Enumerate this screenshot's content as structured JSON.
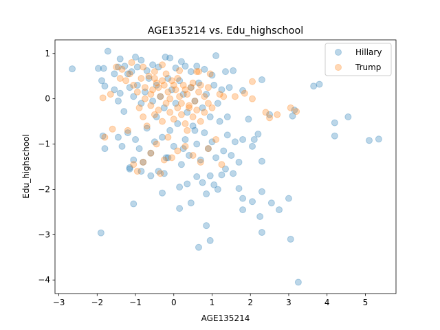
{
  "chart_data": {
    "type": "scatter",
    "title": "AGE135214 vs. Edu_highschool",
    "xlabel": "AGE135214",
    "ylabel": "Edu_highschool",
    "xlim": [
      -3.1,
      5.8
    ],
    "ylim": [
      -4.3,
      1.3
    ],
    "xticks": [
      -3,
      -2,
      -1,
      0,
      1,
      2,
      3,
      4,
      5
    ],
    "yticks": [
      -4,
      -3,
      -2,
      -1,
      0,
      1
    ],
    "grid": false,
    "legend_position": "top-right",
    "series": [
      {
        "name": "Hillary",
        "color": "#1f77b4",
        "points": [
          [
            -2.65,
            0.66
          ],
          [
            -1.97,
            0.67
          ],
          [
            -1.83,
            0.67
          ],
          [
            -1.72,
            1.05
          ],
          [
            -1.88,
            0.4
          ],
          [
            -1.8,
            0.28
          ],
          [
            -1.55,
            0.55
          ],
          [
            -1.45,
            0.7
          ],
          [
            -1.4,
            0.88
          ],
          [
            -1.28,
            0.72
          ],
          [
            -1.2,
            0.55
          ],
          [
            -1.1,
            0.6
          ],
          [
            -1.0,
            0.92
          ],
          [
            -0.95,
            0.7
          ],
          [
            -0.85,
            0.85
          ],
          [
            -0.7,
            0.62
          ],
          [
            -0.55,
            0.75
          ],
          [
            -0.4,
            0.7
          ],
          [
            -0.22,
            0.92
          ],
          [
            -0.1,
            0.9
          ],
          [
            0.05,
            0.68
          ],
          [
            0.2,
            0.82
          ],
          [
            0.3,
            0.72
          ],
          [
            0.45,
            0.6
          ],
          [
            0.6,
            0.72
          ],
          [
            0.8,
            0.65
          ],
          [
            1.0,
            0.52
          ],
          [
            1.1,
            0.95
          ],
          [
            1.35,
            0.6
          ],
          [
            1.55,
            0.62
          ],
          [
            -1.55,
            0.2
          ],
          [
            -1.45,
            -0.05
          ],
          [
            -1.4,
            0.12
          ],
          [
            -1.3,
            -0.28
          ],
          [
            -1.15,
            0.25
          ],
          [
            -1.05,
            0.05
          ],
          [
            -0.95,
            0.3
          ],
          [
            -0.85,
            -0.1
          ],
          [
            -0.75,
            0.15
          ],
          [
            -0.65,
            0.45
          ],
          [
            -0.55,
            -0.05
          ],
          [
            -0.45,
            0.3
          ],
          [
            -0.35,
            0.05
          ],
          [
            -0.25,
            -0.2
          ],
          [
            -0.15,
            0.45
          ],
          [
            -0.05,
            0.2
          ],
          [
            0.05,
            -0.1
          ],
          [
            0.15,
            0.4
          ],
          [
            0.25,
            0.1
          ],
          [
            0.35,
            -0.3
          ],
          [
            0.45,
            0.25
          ],
          [
            0.55,
            -0.05
          ],
          [
            0.65,
            0.35
          ],
          [
            0.75,
            -0.2
          ],
          [
            0.85,
            0.1
          ],
          [
            0.95,
            -0.4
          ],
          [
            1.05,
            0.3
          ],
          [
            1.15,
            -0.1
          ],
          [
            1.25,
            0.2
          ],
          [
            1.45,
            0.25
          ],
          [
            1.8,
            0.18
          ],
          [
            1.95,
            -0.45
          ],
          [
            2.3,
            0.42
          ],
          [
            2.5,
            -0.35
          ],
          [
            3.1,
            -0.38
          ],
          [
            3.15,
            -0.25
          ],
          [
            3.65,
            0.28
          ],
          [
            3.8,
            0.32
          ],
          [
            4.2,
            -0.53
          ],
          [
            4.55,
            -0.4
          ],
          [
            4.2,
            -0.82
          ],
          [
            5.1,
            -0.92
          ],
          [
            5.35,
            -0.89
          ],
          [
            -1.85,
            -0.82
          ],
          [
            -1.8,
            -1.1
          ],
          [
            -1.45,
            -0.85
          ],
          [
            -1.35,
            -1.05
          ],
          [
            -1.2,
            -0.75
          ],
          [
            -1.15,
            -1.52
          ],
          [
            -1.05,
            -1.35
          ],
          [
            -1.0,
            -0.9
          ],
          [
            -0.9,
            -1.1
          ],
          [
            -0.8,
            -1.4
          ],
          [
            -0.7,
            -0.65
          ],
          [
            -0.6,
            -1.2
          ],
          [
            -0.5,
            -0.95
          ],
          [
            -0.4,
            -1.6
          ],
          [
            -0.3,
            -0.85
          ],
          [
            -0.2,
            -1.3
          ],
          [
            -0.1,
            -0.7
          ],
          [
            0.0,
            -1.05
          ],
          [
            0.1,
            -0.55
          ],
          [
            0.2,
            -1.45
          ],
          [
            0.3,
            -0.9
          ],
          [
            0.4,
            -1.25
          ],
          [
            0.5,
            -0.6
          ],
          [
            0.6,
            -1.0
          ],
          [
            0.7,
            -1.35
          ],
          [
            0.8,
            -0.75
          ],
          [
            0.9,
            -1.1
          ],
          [
            1.0,
            -0.95
          ],
          [
            1.1,
            -1.3
          ],
          [
            1.2,
            -0.5
          ],
          [
            1.3,
            -1.15
          ],
          [
            1.4,
            -0.8
          ],
          [
            1.5,
            -1.25
          ],
          [
            1.6,
            -0.95
          ],
          [
            1.7,
            -1.4
          ],
          [
            1.8,
            -0.9
          ],
          [
            2.05,
            -1.05
          ],
          [
            2.1,
            -0.9
          ],
          [
            2.3,
            -1.38
          ],
          [
            2.2,
            -0.78
          ],
          [
            -1.9,
            -2.96
          ],
          [
            -1.15,
            -1.55
          ],
          [
            -1.05,
            -2.32
          ],
          [
            -0.85,
            -1.6
          ],
          [
            -0.6,
            -1.7
          ],
          [
            -0.3,
            -2.08
          ],
          [
            -0.25,
            -1.65
          ],
          [
            0.15,
            -1.95
          ],
          [
            0.35,
            -1.88
          ],
          [
            0.45,
            -2.3
          ],
          [
            0.6,
            -1.72
          ],
          [
            0.75,
            -1.85
          ],
          [
            0.85,
            -2.1
          ],
          [
            0.95,
            -1.7
          ],
          [
            1.05,
            -1.9
          ],
          [
            1.15,
            -2.0
          ],
          [
            1.25,
            -1.68
          ],
          [
            1.35,
            -1.55
          ],
          [
            1.55,
            -1.65
          ],
          [
            1.7,
            -1.98
          ],
          [
            1.8,
            -2.2
          ],
          [
            1.8,
            -2.45
          ],
          [
            2.05,
            -2.27
          ],
          [
            2.25,
            -2.6
          ],
          [
            2.3,
            -2.05
          ],
          [
            2.55,
            -2.3
          ],
          [
            2.75,
            -2.45
          ],
          [
            3.0,
            -2.2
          ],
          [
            2.3,
            -2.95
          ],
          [
            3.05,
            -3.1
          ],
          [
            0.65,
            -3.28
          ],
          [
            0.95,
            -3.13
          ],
          [
            0.85,
            -2.8
          ],
          [
            3.25,
            -4.05
          ],
          [
            0.15,
            -2.42
          ],
          [
            -0.15,
            -1.3
          ],
          [
            0.25,
            -1.1
          ],
          [
            -0.45,
            -0.4
          ],
          [
            0.55,
            -0.7
          ],
          [
            1.4,
            -0.4
          ]
        ]
      },
      {
        "name": "Trump",
        "color": "#ff7f0e",
        "points": [
          [
            -1.85,
            0.02
          ],
          [
            -1.65,
            0.1
          ],
          [
            -1.4,
            0.45
          ],
          [
            -1.35,
            0.65
          ],
          [
            -1.25,
            0.4
          ],
          [
            -1.15,
            0.55
          ],
          [
            -1.05,
            0.3
          ],
          [
            -0.95,
            0.15
          ],
          [
            -0.85,
            0.45
          ],
          [
            -0.75,
            0.25
          ],
          [
            -0.65,
            0.5
          ],
          [
            -0.55,
            0.2
          ],
          [
            -0.45,
            0.35
          ],
          [
            -0.35,
            0.05
          ],
          [
            -0.25,
            0.3
          ],
          [
            -0.15,
            0.15
          ],
          [
            -0.05,
            0.4
          ],
          [
            0.05,
            0.2
          ],
          [
            0.15,
            0.05
          ],
          [
            0.25,
            0.3
          ],
          [
            0.35,
            0.1
          ],
          [
            0.45,
            0.25
          ],
          [
            0.55,
            -0.05
          ],
          [
            0.65,
            0.15
          ],
          [
            -0.6,
            0.1
          ],
          [
            -0.5,
            0.45
          ],
          [
            -0.4,
            0.25
          ],
          [
            -0.3,
            0.4
          ],
          [
            -0.2,
            0.55
          ],
          [
            -0.1,
            0.0
          ],
          [
            0.0,
            0.3
          ],
          [
            0.1,
            0.45
          ],
          [
            0.2,
            -0.1
          ],
          [
            0.3,
            0.2
          ],
          [
            0.4,
            -0.2
          ],
          [
            0.5,
            0.35
          ],
          [
            0.6,
            0.6
          ],
          [
            0.7,
            0.3
          ],
          [
            0.8,
            0.05
          ],
          [
            0.9,
            0.25
          ],
          [
            -0.9,
            -0.2
          ],
          [
            -0.8,
            -0.4
          ],
          [
            -0.7,
            -0.6
          ],
          [
            -0.6,
            -0.15
          ],
          [
            -0.5,
            -0.35
          ],
          [
            -0.4,
            -0.25
          ],
          [
            -0.3,
            -0.5
          ],
          [
            -0.2,
            -0.1
          ],
          [
            -0.1,
            -0.3
          ],
          [
            0.0,
            -0.45
          ],
          [
            0.1,
            -0.2
          ],
          [
            0.2,
            -0.35
          ],
          [
            0.3,
            -0.55
          ],
          [
            0.4,
            -0.15
          ],
          [
            0.5,
            -0.4
          ],
          [
            0.6,
            -0.25
          ],
          [
            0.7,
            -0.5
          ],
          [
            0.8,
            -0.3
          ],
          [
            0.9,
            -0.1
          ],
          [
            1.0,
            -0.2
          ],
          [
            1.6,
            0.05
          ],
          [
            1.85,
            0.12
          ],
          [
            2.05,
            0.0
          ],
          [
            2.05,
            0.38
          ],
          [
            2.4,
            -0.3
          ],
          [
            2.5,
            -0.42
          ],
          [
            2.7,
            -0.35
          ],
          [
            3.05,
            -0.2
          ],
          [
            3.2,
            -0.28
          ],
          [
            1.3,
            0.05
          ],
          [
            -1.8,
            -0.85
          ],
          [
            -1.6,
            -0.67
          ],
          [
            -1.2,
            -0.7
          ],
          [
            -1.05,
            -1.45
          ],
          [
            -0.95,
            -1.6
          ],
          [
            -0.8,
            -1.4
          ],
          [
            -0.6,
            -1.2
          ],
          [
            -0.45,
            -1.0
          ],
          [
            -0.25,
            -1.35
          ],
          [
            -0.05,
            -1.3
          ],
          [
            0.1,
            -1.15
          ],
          [
            0.3,
            -1.05
          ],
          [
            0.5,
            -1.25
          ],
          [
            0.7,
            -1.4
          ],
          [
            0.9,
            -1.1
          ],
          [
            1.1,
            -0.9
          ],
          [
            1.25,
            -1.45
          ],
          [
            -0.35,
            -1.65
          ],
          [
            -0.15,
            -0.85
          ],
          [
            0.35,
            -0.7
          ],
          [
            -1.1,
            0.8
          ],
          [
            -0.8,
            0.7
          ],
          [
            -0.5,
            0.6
          ],
          [
            -0.3,
            0.75
          ],
          [
            0.15,
            0.62
          ],
          [
            0.65,
            0.6
          ],
          [
            0.95,
            0.55
          ],
          [
            -1.5,
            0.7
          ],
          [
            1.2,
            0.1
          ],
          [
            -0.75,
            0.0
          ]
        ]
      }
    ]
  }
}
